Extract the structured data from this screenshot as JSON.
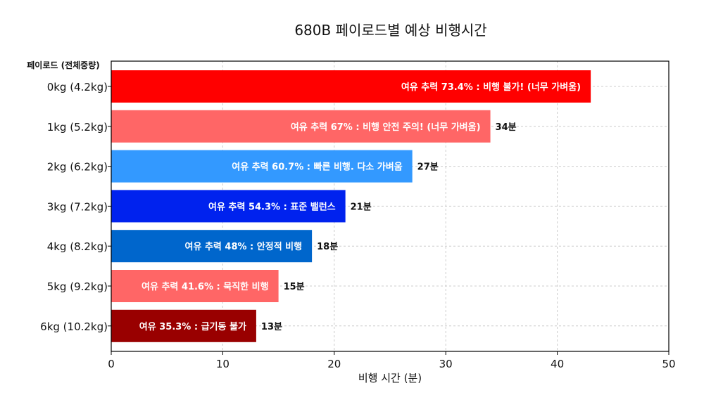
{
  "chart_data": {
    "type": "bar",
    "orientation": "horizontal",
    "title": "680B 페이로드별 예상 비행시간",
    "xlabel": "비행 시간 (분)",
    "ylabel": "페이로드 (전체중량)",
    "xlim": [
      0,
      50
    ],
    "xticks": [
      "0",
      "10",
      "20",
      "30",
      "40",
      "50"
    ],
    "grid": true,
    "categories": [
      "0kg (4.2kg)",
      "1kg (5.2kg)",
      "2kg (6.2kg)",
      "3kg (7.2kg)",
      "4kg (8.2kg)",
      "5kg (9.2kg)",
      "6kg (10.2kg)"
    ],
    "values": [
      43,
      34,
      27,
      21,
      18,
      15,
      13
    ],
    "bar_labels": [
      "여유 추력 73.4% : 비행 불가! (너무 가벼움)",
      "여유 추력 67% : 비행 안전 주의! (너무 가벼움)",
      "여유 추력 60.7% : 빠른 비행. 다소 가벼움",
      "여유 추력 54.3% : 표준 밸런스",
      "여유 추력 48% : 안정적 비행",
      "여유 추력 41.6% : 묵직한 비행",
      "여유 35.3% : 급기동 불가"
    ],
    "time_labels": [
      "",
      "34분",
      "27분",
      "21분",
      "18분",
      "15분",
      "13분"
    ],
    "colors": [
      "#ff0000",
      "#ff6666",
      "#3399ff",
      "#0022ee",
      "#0066cc",
      "#ff6666",
      "#990000"
    ]
  }
}
